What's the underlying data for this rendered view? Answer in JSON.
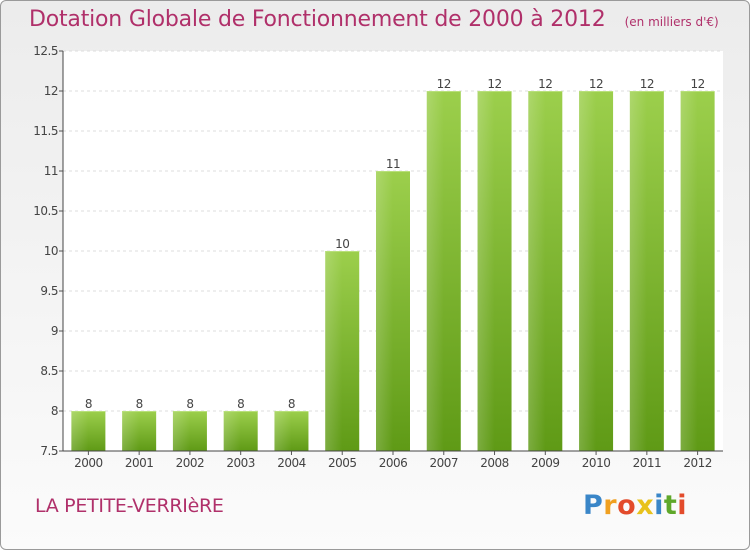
{
  "header": {
    "title": "Dotation Globale de Fonctionnement de 2000 à 2012",
    "subtitle": "(en milliers d'€)"
  },
  "footer": {
    "commune": "LA PETITE-VERRIèRE",
    "logo_letters": [
      "P",
      "r",
      "o",
      "x",
      "i",
      "t",
      "i"
    ],
    "logo_colors": [
      "#3a86c8",
      "#f0a020",
      "#e34b2b",
      "#e8c21c",
      "#3a86c8",
      "#5fa82a",
      "#e34b2b"
    ]
  },
  "chart_data": {
    "type": "bar",
    "categories": [
      "2000",
      "2001",
      "2002",
      "2003",
      "2004",
      "2005",
      "2006",
      "2007",
      "2008",
      "2009",
      "2010",
      "2011",
      "2012"
    ],
    "values": [
      8,
      8,
      8,
      8,
      8,
      10,
      11,
      12,
      12,
      12,
      12,
      12,
      12
    ],
    "data_labels": [
      "8",
      "8",
      "8",
      "8",
      "8",
      "10",
      "11",
      "12",
      "12",
      "12",
      "12",
      "12",
      "12"
    ],
    "yticks": [
      7.5,
      8,
      8.5,
      9,
      9.5,
      10,
      10.5,
      11,
      11.5,
      12,
      12.5
    ],
    "ylim": [
      7.5,
      12.5
    ],
    "grid": true,
    "bar_color_top": "#9ccf4c",
    "bar_color_bottom": "#5f9a16"
  }
}
